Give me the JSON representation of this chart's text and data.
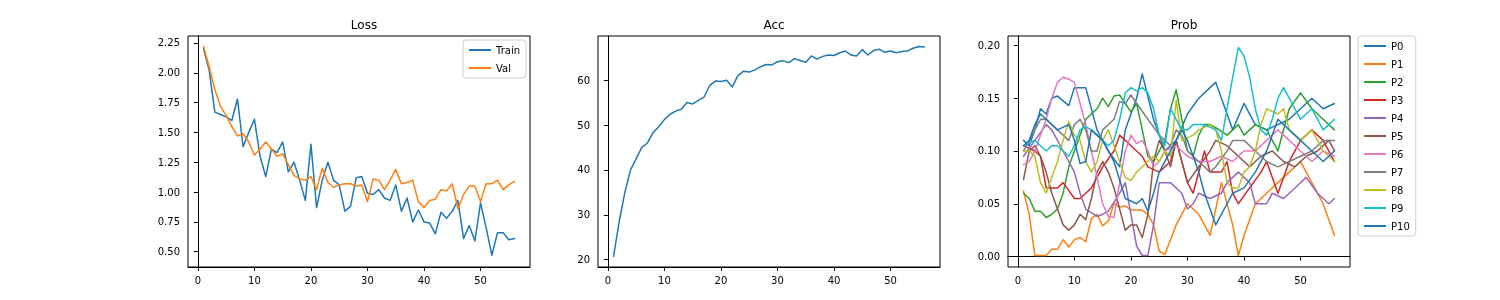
{
  "chart_data": [
    {
      "type": "line",
      "title": "Loss",
      "x": [
        1,
        2,
        3,
        4,
        5,
        6,
        7,
        8,
        9,
        10,
        11,
        12,
        13,
        14,
        15,
        16,
        17,
        18,
        19,
        20,
        21,
        22,
        23,
        24,
        25,
        26,
        27,
        28,
        29,
        30,
        31,
        32,
        33,
        34,
        35,
        36,
        37,
        38,
        39,
        40,
        41,
        42,
        43,
        44,
        45,
        46,
        47,
        48,
        49,
        50,
        51,
        52,
        53,
        54,
        55,
        56
      ],
      "xlim": [
        -1.75,
        58.75
      ],
      "xticks": [
        0,
        10,
        20,
        30,
        40,
        50
      ],
      "ylim": [
        0.372,
        2.308
      ],
      "yticks": [
        {
          "value": 0.5,
          "label": "0.50"
        },
        {
          "value": 0.75,
          "label": "0.75"
        },
        {
          "value": 1,
          "label": "1.00"
        },
        {
          "value": 1.25,
          "label": "1.25"
        },
        {
          "value": 1.5,
          "label": "1.50"
        },
        {
          "value": 1.75,
          "label": "1.75"
        },
        {
          "value": 2,
          "label": "2.00"
        },
        {
          "value": 2.25,
          "label": "2.25"
        }
      ],
      "legend": "top right",
      "series": [
        {
          "name": "Train",
          "color": "#1f77b4",
          "values": [
            2.2,
            2.02,
            1.67,
            1.65,
            1.63,
            1.6,
            1.78,
            1.38,
            1.5,
            1.61,
            1.3,
            1.13,
            1.36,
            1.33,
            1.42,
            1.17,
            1.25,
            1.1,
            0.93,
            1.4,
            0.87,
            1.1,
            1.25,
            1.1,
            1.06,
            0.84,
            0.88,
            1.12,
            1.13,
            0.99,
            0.98,
            1.02,
            0.95,
            0.93,
            1.06,
            0.84,
            0.95,
            0.75,
            0.85,
            0.75,
            0.74,
            0.65,
            0.83,
            0.78,
            0.84,
            0.93,
            0.61,
            0.72,
            0.59,
            0.91,
            0.7,
            0.47,
            0.66,
            0.66,
            0.6,
            0.61
          ]
        },
        {
          "name": "Val",
          "color": "#ff7f0e",
          "values": [
            2.22,
            2.05,
            1.86,
            1.72,
            1.64,
            1.55,
            1.47,
            1.49,
            1.42,
            1.31,
            1.36,
            1.42,
            1.36,
            1.3,
            1.32,
            1.23,
            1.14,
            1.11,
            1.1,
            1.13,
            1.02,
            1.2,
            1.08,
            1.04,
            1.06,
            1.07,
            1.07,
            1.05,
            1.06,
            0.92,
            1.11,
            1.1,
            1.02,
            1.1,
            1.19,
            1.07,
            1.08,
            1.1,
            0.92,
            0.87,
            0.93,
            0.94,
            1.02,
            1.01,
            1.07,
            0.86,
            0.98,
            1.05,
            1.05,
            0.92,
            1.07,
            1.07,
            1.1,
            1.02,
            1.06,
            1.09
          ]
        }
      ]
    },
    {
      "type": "line",
      "title": "Acc",
      "x": [
        1,
        2,
        3,
        4,
        5,
        6,
        7,
        8,
        9,
        10,
        11,
        12,
        13,
        14,
        15,
        16,
        17,
        18,
        19,
        20,
        21,
        22,
        23,
        24,
        25,
        26,
        27,
        28,
        29,
        30,
        31,
        32,
        33,
        34,
        35,
        36,
        37,
        38,
        39,
        40,
        41,
        42,
        43,
        44,
        45,
        46,
        47,
        48,
        49,
        50,
        51,
        52,
        53,
        54,
        55,
        56
      ],
      "xlim": [
        -1.75,
        58.75
      ],
      "xticks": [
        0,
        10,
        20,
        30,
        40,
        50
      ],
      "ylim": [
        18.36,
        69.84
      ],
      "yticks": [
        20,
        30,
        40,
        50,
        60
      ],
      "series": [
        {
          "color": "#1f77b4",
          "values": [
            20.7,
            28.5,
            35,
            40,
            42.5,
            45,
            46,
            48.3,
            49.6,
            51.2,
            52.4,
            53.1,
            53.5,
            55,
            54.7,
            55.5,
            56.2,
            58.8,
            59.8,
            59.7,
            60,
            58.5,
            61,
            62,
            61.8,
            62.3,
            63,
            63.5,
            63.4,
            64.1,
            64.3,
            63.9,
            64.8,
            64.4,
            64,
            65.4,
            64.7,
            65.3,
            65.6,
            65.5,
            66.1,
            66.5,
            65.6,
            65.4,
            66.8,
            65.6,
            66.6,
            66.9,
            66.2,
            66.5,
            66.1,
            66.4,
            66.5,
            67.1,
            67.5,
            67.4
          ]
        }
      ]
    },
    {
      "type": "line",
      "title": "Prob",
      "xlim": [
        -1.75,
        58.75
      ],
      "xticks": [
        0,
        10,
        20,
        30,
        40,
        50
      ],
      "ylim": [
        -0.0099,
        0.2089
      ],
      "yticks": [
        {
          "value": 0,
          "label": "0.00"
        },
        {
          "value": 0.05,
          "label": "0.05"
        },
        {
          "value": 0.1,
          "label": "0.10"
        },
        {
          "value": 0.15,
          "label": "0.15"
        },
        {
          "value": 0.2,
          "label": "0.20"
        }
      ],
      "legend": "right",
      "series": [
        {
          "name": "P0",
          "color": "#1f77b4",
          "x": [
            1,
            2,
            3,
            4,
            5,
            6,
            7,
            9,
            10,
            12,
            14,
            16,
            18,
            19,
            21,
            22,
            24,
            26,
            28,
            30,
            32,
            34,
            35,
            36,
            38,
            40,
            42,
            44,
            46,
            48,
            50,
            52,
            54,
            56
          ],
          "values": [
            0.11,
            0.105,
            0.12,
            0.14,
            0.135,
            0.15,
            0.152,
            0.143,
            0.16,
            0.16,
            0.12,
            0.1,
            0.085,
            0.12,
            0.15,
            0.173,
            0.13,
            0.1,
            0.11,
            0.135,
            0.15,
            0.16,
            0.165,
            0.15,
            0.12,
            0.145,
            0.125,
            0.12,
            0.125,
            0.13,
            0.14,
            0.15,
            0.14,
            0.145
          ]
        },
        {
          "name": "P1",
          "color": "#ff7f0e",
          "x": [
            1,
            2,
            3,
            4,
            5,
            6,
            7,
            8,
            9,
            10,
            11,
            12,
            13,
            14,
            15,
            16,
            17,
            18,
            19,
            20,
            21,
            22,
            23,
            24,
            25,
            26,
            28,
            30,
            32,
            34,
            36,
            38,
            39,
            40,
            42,
            44,
            46,
            48,
            50,
            52,
            54,
            56
          ],
          "values": [
            0.062,
            0.04,
            0.001,
            0.001,
            0.001,
            0.007,
            0.007,
            0.016,
            0.009,
            0.016,
            0.018,
            0.014,
            0.036,
            0.04,
            0.029,
            0.034,
            0.05,
            0.047,
            0.048,
            0.044,
            0.044,
            0.044,
            0.04,
            0.03,
            0.005,
            0.002,
            0.03,
            0.05,
            0.04,
            0.02,
            0.07,
            0.03,
            0.001,
            0.02,
            0.05,
            0.06,
            0.07,
            0.08,
            0.09,
            0.07,
            0.05,
            0.02
          ]
        },
        {
          "name": "P2",
          "color": "#2ca02c",
          "x": [
            1,
            2,
            3,
            4,
            5,
            6,
            7,
            8,
            9,
            10,
            11,
            12,
            13,
            14,
            15,
            16,
            17,
            18,
            19,
            20,
            21,
            22,
            23,
            24,
            26,
            27,
            28,
            29,
            30,
            31,
            32,
            33,
            34,
            35,
            37,
            39,
            40,
            42,
            44,
            46,
            48,
            50,
            52,
            54,
            56
          ],
          "values": [
            0.06,
            0.055,
            0.043,
            0.043,
            0.037,
            0.04,
            0.045,
            0.06,
            0.085,
            0.1,
            0.115,
            0.13,
            0.135,
            0.14,
            0.15,
            0.142,
            0.152,
            0.153,
            0.145,
            0.137,
            0.145,
            0.12,
            0.095,
            0.09,
            0.11,
            0.14,
            0.158,
            0.13,
            0.1,
            0.095,
            0.115,
            0.125,
            0.125,
            0.122,
            0.115,
            0.125,
            0.115,
            0.125,
            0.12,
            0.1,
            0.14,
            0.155,
            0.14,
            0.13,
            0.12
          ]
        },
        {
          "name": "P3",
          "color": "#d62728",
          "x": [
            1,
            3,
            4,
            5,
            7,
            8,
            10,
            11,
            13,
            15,
            17,
            18,
            20,
            22,
            23,
            25,
            27,
            28,
            30,
            31,
            33,
            34,
            36,
            37,
            38,
            39,
            41,
            43,
            44,
            46,
            48,
            50,
            52,
            54,
            56
          ],
          "values": [
            0.105,
            0.1,
            0.095,
            0.065,
            0.065,
            0.07,
            0.055,
            0.055,
            0.065,
            0.085,
            0.1,
            0.115,
            0.105,
            0.095,
            0.085,
            0.08,
            0.09,
            0.11,
            0.07,
            0.06,
            0.1,
            0.08,
            0.08,
            0.09,
            0.06,
            0.05,
            0.065,
            0.08,
            0.09,
            0.06,
            0.09,
            0.11,
            0.12,
            0.11,
            0.09
          ]
        },
        {
          "name": "P4",
          "color": "#9467bd",
          "x": [
            1,
            3,
            5,
            6,
            8,
            10,
            11,
            12,
            14,
            15,
            16,
            18,
            19,
            20,
            21,
            22,
            23,
            24,
            25,
            27,
            29,
            30,
            31,
            32,
            34,
            36,
            37,
            39,
            41,
            42,
            44,
            45,
            47,
            49,
            51,
            53,
            55,
            56
          ],
          "values": [
            0.095,
            0.11,
            0.125,
            0.12,
            0.1,
            0.08,
            0.06,
            0.045,
            0.038,
            0.04,
            0.043,
            0.06,
            0.07,
            0.04,
            0.01,
            0.001,
            0.001,
            0.03,
            0.07,
            0.07,
            0.06,
            0.045,
            0.05,
            0.06,
            0.055,
            0.06,
            0.07,
            0.08,
            0.07,
            0.05,
            0.05,
            0.06,
            0.055,
            0.065,
            0.075,
            0.06,
            0.05,
            0.055
          ]
        },
        {
          "name": "P5",
          "color": "#8c564b",
          "x": [
            1,
            2,
            3,
            4,
            5,
            6,
            7,
            8,
            9,
            10,
            11,
            12,
            13,
            14,
            15,
            16,
            17,
            18,
            19,
            20,
            21,
            22,
            23,
            24,
            25,
            26,
            27,
            28,
            30,
            32,
            34,
            35,
            37,
            39,
            41,
            43,
            45,
            47,
            49,
            51,
            53,
            55,
            56
          ],
          "values": [
            0.073,
            0.1,
            0.105,
            0.095,
            0.08,
            0.06,
            0.045,
            0.03,
            0.025,
            0.03,
            0.04,
            0.035,
            0.055,
            0.08,
            0.09,
            0.08,
            0.065,
            0.045,
            0.025,
            0.03,
            0.03,
            0.018,
            0.04,
            0.09,
            0.11,
            0.1,
            0.085,
            0.11,
            0.07,
            0.085,
            0.1,
            0.11,
            0.105,
            0.095,
            0.085,
            0.095,
            0.1,
            0.09,
            0.085,
            0.095,
            0.1,
            0.11,
            0.1
          ]
        },
        {
          "name": "P6",
          "color": "#e377c2",
          "x": [
            1,
            2,
            3,
            5,
            6,
            7,
            8,
            9,
            10,
            11,
            12,
            13,
            14,
            15,
            16,
            17,
            18,
            19,
            20,
            21,
            22,
            23,
            24,
            25,
            26,
            28,
            30,
            32,
            34,
            36,
            38,
            40,
            42,
            44,
            46,
            48,
            50,
            52,
            54,
            56
          ],
          "values": [
            0.087,
            0.09,
            0.1,
            0.13,
            0.15,
            0.165,
            0.17,
            0.168,
            0.165,
            0.145,
            0.125,
            0.1,
            0.075,
            0.05,
            0.038,
            0.037,
            0.07,
            0.1,
            0.115,
            0.107,
            0.11,
            0.1,
            0.085,
            0.09,
            0.1,
            0.105,
            0.095,
            0.09,
            0.09,
            0.095,
            0.09,
            0.1,
            0.1,
            0.11,
            0.12,
            0.11,
            0.1,
            0.09,
            0.1,
            0.095
          ]
        },
        {
          "name": "P7",
          "color": "#7f7f7f",
          "x": [
            1,
            2,
            3,
            4,
            5,
            7,
            9,
            10,
            11,
            12,
            13,
            14,
            15,
            17,
            18,
            19,
            20,
            21,
            23,
            25,
            27,
            28,
            29,
            30,
            32,
            34,
            35,
            37,
            38,
            40,
            42,
            44,
            46,
            48,
            50,
            52,
            54,
            56
          ],
          "values": [
            0.1,
            0.11,
            0.12,
            0.13,
            0.13,
            0.12,
            0.11,
            0.125,
            0.13,
            0.12,
            0.1,
            0.1,
            0.12,
            0.13,
            0.147,
            0.145,
            0.153,
            0.145,
            0.13,
            0.115,
            0.105,
            0.12,
            0.115,
            0.1,
            0.09,
            0.08,
            0.085,
            0.1,
            0.11,
            0.11,
            0.1,
            0.09,
            0.085,
            0.09,
            0.095,
            0.1,
            0.11,
            0.11
          ]
        },
        {
          "name": "P8",
          "color": "#bcbd22",
          "x": [
            1,
            2,
            3,
            4,
            5,
            6,
            7,
            8,
            9,
            10,
            11,
            12,
            13,
            14,
            15,
            16,
            17,
            18,
            19,
            20,
            21,
            22,
            23,
            24,
            25,
            26,
            27,
            28,
            29,
            31,
            32,
            34,
            35,
            36,
            37,
            38,
            39,
            40,
            41,
            42,
            43,
            44,
            46,
            47,
            48,
            50,
            52,
            54,
            56
          ],
          "values": [
            0.1,
            0.1,
            0.095,
            0.07,
            0.06,
            0.075,
            0.09,
            0.11,
            0.128,
            0.115,
            0.11,
            0.09,
            0.08,
            0.09,
            0.11,
            0.12,
            0.105,
            0.09,
            0.075,
            0.072,
            0.08,
            0.085,
            0.09,
            0.095,
            0.09,
            0.1,
            0.095,
            0.148,
            0.11,
            0.115,
            0.12,
            0.125,
            0.12,
            0.1,
            0.07,
            0.065,
            0.065,
            0.08,
            0.085,
            0.1,
            0.125,
            0.14,
            0.135,
            0.14,
            0.12,
            0.11,
            0.12,
            0.1,
            0.09
          ]
        },
        {
          "name": "P9",
          "color": "#17becf",
          "x": [
            1,
            2,
            3,
            4,
            5,
            6,
            7,
            8,
            9,
            10,
            11,
            12,
            13,
            14,
            15,
            16,
            17,
            18,
            19,
            20,
            21,
            22,
            23,
            24,
            25,
            26,
            27,
            28,
            29,
            30,
            31,
            33,
            35,
            36,
            37,
            38,
            39,
            40,
            41,
            42,
            43,
            44,
            45,
            46,
            47,
            48,
            49,
            50,
            52,
            54,
            56
          ],
          "values": [
            0.105,
            0.108,
            0.11,
            0.105,
            0.1,
            0.105,
            0.105,
            0.1,
            0.095,
            0.105,
            0.12,
            0.123,
            0.12,
            0.115,
            0.11,
            0.105,
            0.11,
            0.13,
            0.155,
            0.16,
            0.157,
            0.16,
            0.155,
            0.14,
            0.115,
            0.105,
            0.14,
            0.13,
            0.12,
            0.12,
            0.125,
            0.125,
            0.12,
            0.11,
            0.14,
            0.17,
            0.198,
            0.19,
            0.17,
            0.14,
            0.12,
            0.115,
            0.13,
            0.15,
            0.16,
            0.15,
            0.14,
            0.13,
            0.14,
            0.12,
            0.13
          ]
        },
        {
          "name": "P10",
          "color": "#1f77b4",
          "x": [
            1,
            2,
            3,
            4,
            5,
            7,
            9,
            10,
            11,
            12,
            13,
            15,
            17,
            19,
            21,
            22,
            23,
            24,
            25,
            27,
            29,
            30,
            32,
            33,
            35,
            37,
            38,
            40,
            42,
            44,
            46,
            48,
            50,
            52,
            54,
            56
          ],
          "values": [
            0.105,
            0.11,
            0.125,
            0.135,
            0.13,
            0.12,
            0.125,
            0.11,
            0.088,
            0.09,
            0.12,
            0.11,
            0.09,
            0.055,
            0.05,
            0.055,
            0.043,
            0.06,
            0.08,
            0.1,
            0.12,
            0.11,
            0.08,
            0.06,
            0.03,
            0.05,
            0.06,
            0.065,
            0.08,
            0.1,
            0.13,
            0.12,
            0.11,
            0.1,
            0.09,
            0.1
          ]
        }
      ]
    }
  ]
}
